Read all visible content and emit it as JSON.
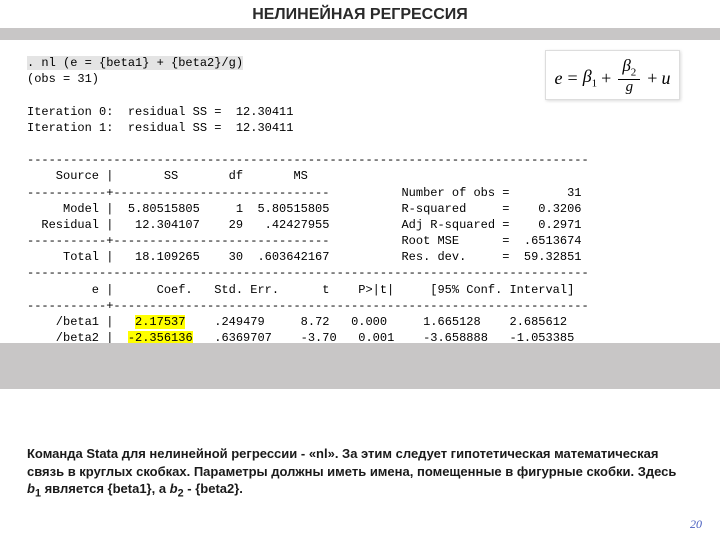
{
  "title": "НЕЛИНЕЙНАЯ РЕГРЕССИЯ",
  "formula": {
    "term1": "e",
    "eq": "=",
    "beta": "β",
    "sub1": "1",
    "sub2": "2",
    "plus": "+",
    "den": "g",
    "plus2": "+",
    "u": "u"
  },
  "stata": {
    "command": ". nl (e = {beta1} + {beta2}/g)",
    "obs_line": "(obs = 31)",
    "iter0": "Iteration 0:  residual SS =  12.30411",
    "iter1": "Iteration 1:  residual SS =  12.30411",
    "dashlong": "------------------------------------------------------------------------------",
    "src_hdr": "    Source |       SS       df       MS",
    "dash_cross": "-----------+------------------------------",
    "r_nobs": "          Number of obs =        31",
    "model": "     Model |  5.80515805     1  5.80515805",
    "r_r2": "          R-squared     =    0.3206",
    "resid": "  Residual |   12.304107    29   .42427955",
    "r_adj": "          Adj R-squared =    0.2971",
    "dash_cross2": "-----------+------------------------------",
    "r_rmse": "          Root MSE      =  .6513674",
    "total": "     Total |   18.109265    30  .603642167",
    "r_dev": "          Res. dev.     =  59.32851",
    "coefhdr": "         e |      Coef.   Std. Err.      t    P>|t|     [95% Conf. Interval]",
    "dash_cross3": "-----------+------------------------------------------------------------------",
    "b1_pref": "    /beta1 |   ",
    "b1_coef": "2.17537",
    "b1_rest": "    .249479     8.72   0.000     1.665128    2.685612",
    "b2_pref": "    /beta2 |  ",
    "b2_coef": "-2.356136",
    "b2_rest": "   .6369707    -3.70   0.001    -3.658888   -1.053385"
  },
  "caption": {
    "p1": "Команда Stata для нелинейной регрессии - «nl». За этим следует гипотетическая математическая связь в круглых скобках. Параметры должны иметь имена, помещенные в фигурные скобки. Здесь ",
    "b1": "b",
    "s1": "1",
    "mid": " является {beta1}, а ",
    "b2": "b",
    "s2": "2",
    "end": " - {beta2}."
  },
  "page_number": "20",
  "colors": {
    "highlight": "#ffff00",
    "bar": "#c8c6c6",
    "pagenum": "#4a60c0"
  }
}
